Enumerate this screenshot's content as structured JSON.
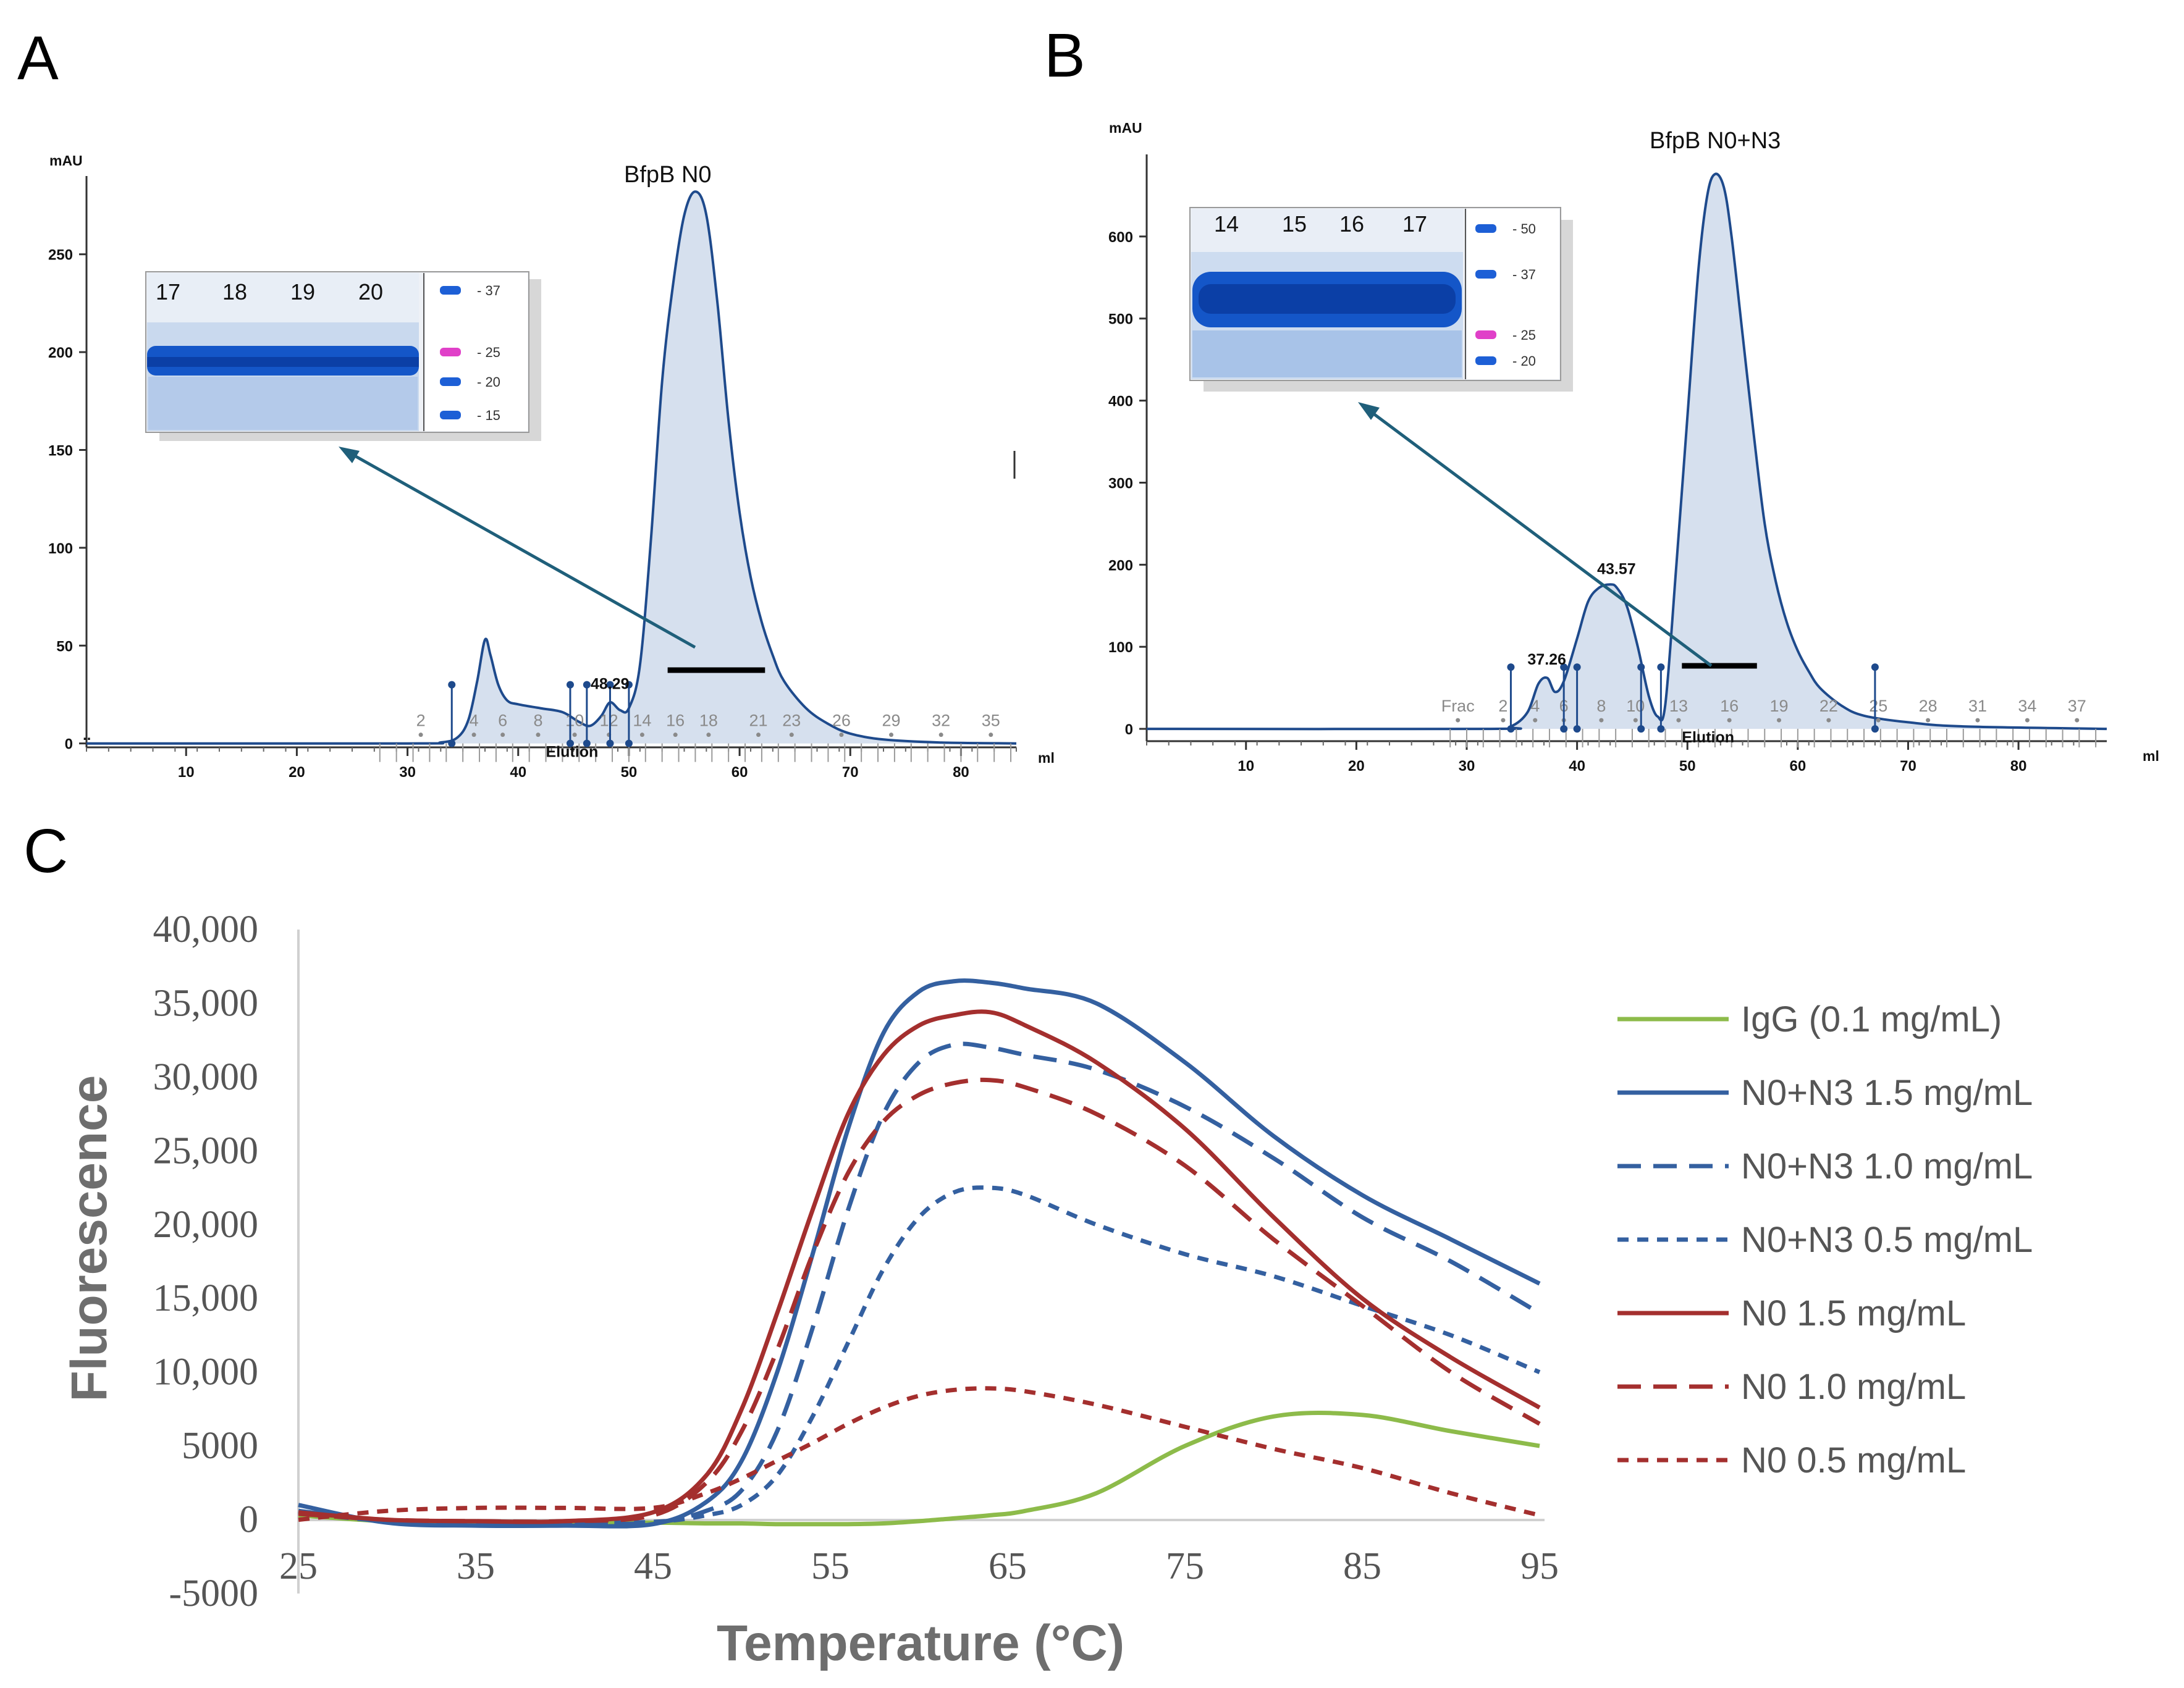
{
  "panel_labels": [
    "A",
    "B",
    "C"
  ],
  "chart_data": [
    {
      "panel": "A",
      "type": "line",
      "title": "BfpB N0",
      "ylabel": "mAU",
      "xlabel": "ml",
      "xlim": [
        1,
        85
      ],
      "ylim": [
        -2,
        290
      ],
      "xticks": [
        10,
        20,
        30,
        40,
        50,
        60,
        70,
        80
      ],
      "yticks": [
        0,
        50,
        100,
        150,
        200,
        250
      ],
      "trace": {
        "x": [
          1,
          30,
          33,
          34.5,
          35.5,
          36.3,
          37,
          37.5,
          38.2,
          39,
          40,
          42,
          44,
          45.5,
          46.5,
          47.5,
          48.3,
          49.2,
          50,
          51,
          52,
          53,
          54,
          55,
          56,
          57,
          58,
          59,
          60,
          61,
          62,
          63,
          64,
          66,
          68,
          70,
          73,
          78,
          85
        ],
        "y": [
          0,
          0,
          0.5,
          3,
          12,
          32,
          53,
          45,
          30,
          22,
          20,
          18,
          16,
          11,
          9,
          14,
          21,
          17,
          18,
          40,
          105,
          185,
          235,
          270,
          282,
          270,
          225,
          165,
          118,
          85,
          62,
          45,
          32,
          18,
          10,
          5,
          2,
          0.5,
          0
        ]
      },
      "peak_labels": [
        {
          "x": 48.29,
          "label": "48.29"
        }
      ],
      "fraction_labels": [
        {
          "x": 31.2,
          "label": "2"
        },
        {
          "x": 36,
          "label": "4"
        },
        {
          "x": 38.6,
          "label": "6"
        },
        {
          "x": 41.8,
          "label": "8"
        },
        {
          "x": 45.1,
          "label": "10"
        },
        {
          "x": 48.2,
          "label": "12"
        },
        {
          "x": 51.2,
          "label": "14"
        },
        {
          "x": 54.2,
          "label": "16"
        },
        {
          "x": 57.2,
          "label": "18"
        },
        {
          "x": 61.7,
          "label": "21"
        },
        {
          "x": 64.7,
          "label": "23"
        },
        {
          "x": 69.2,
          "label": "26"
        },
        {
          "x": 73.7,
          "label": "29"
        },
        {
          "x": 78.2,
          "label": "32"
        },
        {
          "x": 82.7,
          "label": "35"
        }
      ],
      "fraction_markers_x": [
        34,
        44.7,
        46.2,
        48.3,
        50
      ],
      "elution_label": "Elution",
      "fraction_bar_x": [
        53.5,
        62.3
      ],
      "gel": {
        "lanes": [
          "17",
          "18",
          "19",
          "20"
        ],
        "markers_kda": [
          "37",
          "25",
          "20",
          "15"
        ],
        "marker_colors": [
          "#1d5fd6",
          "#e040c8",
          "#1d5fd6",
          "#1d5fd6"
        ]
      }
    },
    {
      "panel": "B",
      "type": "line",
      "title": "BfpB N0+N3",
      "ylabel": "mAU",
      "xlabel": "ml",
      "xlim": [
        1,
        88
      ],
      "ylim": [
        -15,
        700
      ],
      "xticks": [
        10,
        20,
        30,
        40,
        50,
        60,
        70,
        80
      ],
      "yticks": [
        0,
        100,
        200,
        300,
        400,
        500,
        600
      ],
      "trace": {
        "x": [
          1,
          32,
          34,
          35.5,
          36.5,
          37.3,
          38,
          38.8,
          40,
          41,
          42,
          43,
          43.6,
          44.5,
          45.5,
          46.5,
          47.3,
          48,
          49,
          50,
          51,
          51.8,
          52.5,
          53.3,
          54,
          55,
          56,
          57,
          58,
          59,
          60,
          61,
          62,
          64,
          66,
          70,
          75,
          88
        ],
        "y": [
          0,
          0,
          3,
          20,
          55,
          62,
          45,
          58,
          110,
          155,
          172,
          176,
          172,
          150,
          100,
          40,
          15,
          30,
          200,
          380,
          560,
          650,
          676,
          660,
          600,
          480,
          360,
          250,
          180,
          130,
          95,
          70,
          50,
          28,
          16,
          8,
          3,
          0
        ]
      },
      "peak_labels": [
        {
          "x": 37.26,
          "label": "37.26"
        },
        {
          "x": 43.57,
          "label": "43.57"
        }
      ],
      "fraction_labels": [
        {
          "x": 29.2,
          "label": "Frac"
        },
        {
          "x": 33.3,
          "label": "2"
        },
        {
          "x": 36.2,
          "label": "4"
        },
        {
          "x": 38.8,
          "label": "6"
        },
        {
          "x": 42.2,
          "label": "8"
        },
        {
          "x": 45.3,
          "label": "10"
        },
        {
          "x": 49.2,
          "label": "13"
        },
        {
          "x": 53.8,
          "label": "16"
        },
        {
          "x": 58.3,
          "label": "19"
        },
        {
          "x": 62.8,
          "label": "22"
        },
        {
          "x": 67.3,
          "label": "25"
        },
        {
          "x": 71.8,
          "label": "28"
        },
        {
          "x": 76.3,
          "label": "31"
        },
        {
          "x": 80.8,
          "label": "34"
        },
        {
          "x": 85.3,
          "label": "37"
        }
      ],
      "fraction_markers_x": [
        34,
        38.8,
        40,
        45.8,
        47.6,
        67
      ],
      "elution_label": "Elution",
      "fraction_bar_x": [
        49.5,
        56.3
      ],
      "gel": {
        "lanes": [
          "14",
          "15",
          "16",
          "17"
        ],
        "markers_kda": [
          "50",
          "37",
          "25",
          "20"
        ],
        "marker_colors": [
          "#1d5fd6",
          "#1d5fd6",
          "#e040c8",
          "#1d5fd6"
        ]
      }
    },
    {
      "panel": "C",
      "type": "line",
      "xlabel": "Temperature (°C)",
      "ylabel": "Fluorescence",
      "xlim": [
        25,
        95
      ],
      "ylim": [
        -5000,
        40000
      ],
      "xticks": [
        25,
        35,
        45,
        55,
        65,
        75,
        85,
        95
      ],
      "yticks": [
        -5000,
        0,
        5000,
        10000,
        15000,
        20000,
        25000,
        30000,
        35000,
        40000
      ],
      "ytick_labels": [
        "-5000",
        "0",
        "5000",
        "10,000",
        "15,000",
        "20,000",
        "25,000",
        "30,000",
        "35,000",
        "40,000"
      ],
      "legend_position": "right",
      "x": [
        25,
        30,
        35,
        40,
        45,
        48,
        50,
        52,
        54,
        56,
        58,
        60,
        62,
        64,
        66,
        70,
        75,
        80,
        85,
        90,
        95
      ],
      "series": [
        {
          "name": "IgG (0.1 mg/mL)",
          "color": "#8dbb4a",
          "dash": "solid",
          "values": [
            300,
            -100,
            -200,
            -200,
            -200,
            -250,
            -250,
            -300,
            -300,
            -300,
            -250,
            -100,
            100,
            300,
            600,
            1800,
            5000,
            7000,
            7100,
            6000,
            5000
          ]
        },
        {
          "name": "N0+N3 1.5 mg/mL",
          "color": "#3460a0",
          "dash": "solid",
          "values": [
            1000,
            -200,
            -400,
            -400,
            -300,
            1200,
            4000,
            10000,
            18000,
            26500,
            33000,
            35800,
            36500,
            36400,
            36000,
            35000,
            31000,
            26000,
            22000,
            19000,
            16000
          ]
        },
        {
          "name": "N0+N3 1.0 mg/mL",
          "color": "#3460a0",
          "dash": "long",
          "values": [
            600,
            -100,
            -300,
            -300,
            -200,
            600,
            2000,
            6000,
            13000,
            21000,
            27500,
            31000,
            32200,
            32000,
            31500,
            30500,
            28000,
            24500,
            20500,
            17500,
            14000
          ]
        },
        {
          "name": "N0+N3 0.5 mg/mL",
          "color": "#3460a0",
          "dash": "short",
          "values": [
            500,
            -100,
            -200,
            -200,
            -150,
            300,
            1000,
            3000,
            7000,
            12000,
            17000,
            20500,
            22200,
            22500,
            22000,
            20000,
            18000,
            16500,
            14500,
            12500,
            10000
          ]
        },
        {
          "name": "N0 1.5 mg/mL",
          "color": "#a42f2e",
          "dash": "solid",
          "values": [
            500,
            0,
            -100,
            -100,
            500,
            3000,
            7500,
            14000,
            21000,
            27500,
            31500,
            33500,
            34200,
            34400,
            33500,
            31000,
            26500,
            20500,
            15000,
            11000,
            7600
          ]
        },
        {
          "name": "N0 1.0 mg/mL",
          "color": "#a42f2e",
          "dash": "long",
          "values": [
            400,
            0,
            -100,
            -100,
            300,
            2500,
            6000,
            11500,
            18000,
            23500,
            27000,
            28800,
            29600,
            29800,
            29300,
            27500,
            24000,
            19000,
            14500,
            10000,
            6500
          ]
        },
        {
          "name": "N0 0.5 mg/mL",
          "color": "#a42f2e",
          "dash": "short",
          "values": [
            0,
            600,
            800,
            800,
            800,
            1800,
            2800,
            4000,
            5200,
            6500,
            7600,
            8400,
            8800,
            8900,
            8700,
            7800,
            6300,
            4800,
            3500,
            1800,
            300
          ]
        }
      ]
    }
  ]
}
